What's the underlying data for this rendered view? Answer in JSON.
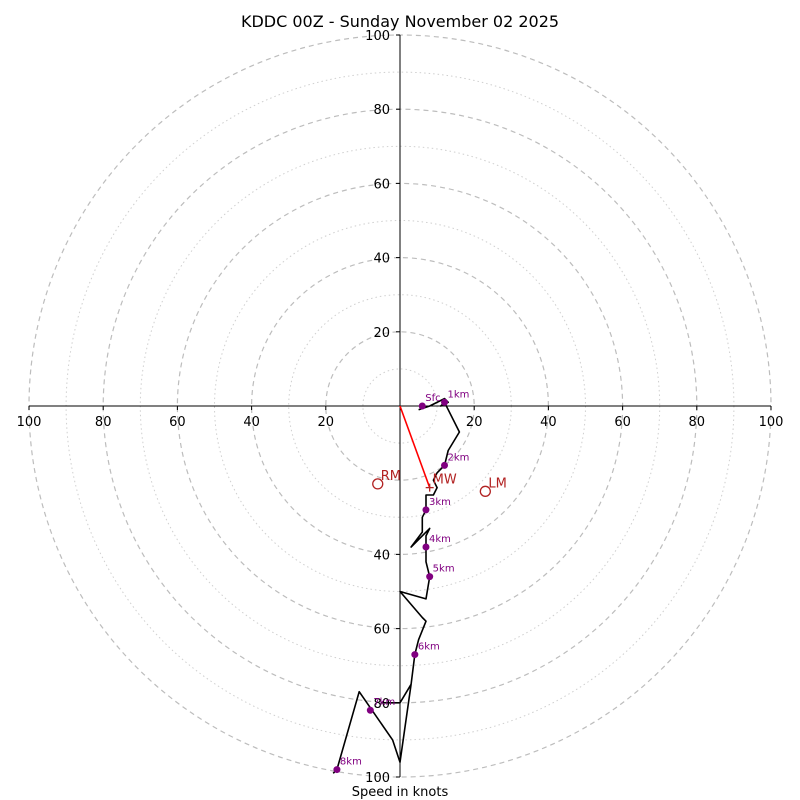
{
  "chart_data": {
    "type": "hodograph",
    "title": "KDDC 00Z - Sunday November 02 2025",
    "xlabel": "Speed in knots",
    "axis_range": [
      -100,
      100
    ],
    "ring_major": [
      20,
      40,
      60,
      80,
      100
    ],
    "ring_minor": [
      10,
      30,
      50,
      70,
      90
    ],
    "x_ticks": [
      {
        "value": -100,
        "label": "100"
      },
      {
        "value": -80,
        "label": "80"
      },
      {
        "value": -60,
        "label": "60"
      },
      {
        "value": -40,
        "label": "40"
      },
      {
        "value": -20,
        "label": "20"
      },
      {
        "value": 20,
        "label": "20"
      },
      {
        "value": 40,
        "label": "40"
      },
      {
        "value": 60,
        "label": "60"
      },
      {
        "value": 80,
        "label": "80"
      },
      {
        "value": 100,
        "label": "100"
      }
    ],
    "y_ticks": [
      {
        "value": 100,
        "label": "100"
      },
      {
        "value": 80,
        "label": "80"
      },
      {
        "value": 60,
        "label": "60"
      },
      {
        "value": 40,
        "label": "40"
      },
      {
        "value": 20,
        "label": "20"
      },
      {
        "value": -40,
        "label": "40"
      },
      {
        "value": -60,
        "label": "60"
      },
      {
        "value": -80,
        "label": "80"
      },
      {
        "value": -100,
        "label": "100"
      }
    ],
    "hodograph_uv": [
      [
        5,
        -1
      ],
      [
        8,
        0
      ],
      [
        12,
        2
      ],
      [
        13,
        1
      ],
      [
        11,
        0
      ],
      [
        12,
        1
      ],
      [
        16,
        -7
      ],
      [
        13,
        -12
      ],
      [
        12,
        -16
      ],
      [
        10,
        -18
      ],
      [
        9,
        -20
      ],
      [
        10,
        -22
      ],
      [
        9,
        -24
      ],
      [
        7,
        -24
      ],
      [
        7,
        -26
      ],
      [
        7,
        -28
      ],
      [
        6,
        -30
      ],
      [
        6,
        -32
      ],
      [
        6,
        -34
      ],
      [
        3,
        -38
      ],
      [
        8,
        -33
      ],
      [
        7,
        -35
      ],
      [
        7,
        -38
      ],
      [
        7,
        -42
      ],
      [
        8,
        -46
      ],
      [
        7,
        -52
      ],
      [
        0,
        -50
      ],
      [
        6,
        -57
      ],
      [
        7,
        -58
      ],
      [
        5,
        -63
      ],
      [
        4,
        -67
      ],
      [
        3,
        -75
      ],
      [
        0,
        -80
      ],
      [
        -5,
        -80
      ],
      [
        0,
        -80
      ],
      [
        3,
        -75
      ],
      [
        0,
        -96
      ],
      [
        -2,
        -90
      ],
      [
        -11,
        -77
      ],
      [
        -17,
        -98
      ],
      [
        -18,
        -99
      ]
    ],
    "height_markers": [
      {
        "label": "Sfc",
        "u": 6,
        "v": 0
      },
      {
        "label": "1km",
        "u": 12,
        "v": 1
      },
      {
        "label": "2km",
        "u": 12,
        "v": -16
      },
      {
        "label": "3km",
        "u": 7,
        "v": -28
      },
      {
        "label": "4km",
        "u": 7,
        "v": -38
      },
      {
        "label": "5km",
        "u": 8,
        "v": -46
      },
      {
        "label": "6km",
        "u": 4,
        "v": -67
      },
      {
        "label": "7km",
        "u": -8,
        "v": -82
      },
      {
        "label": "8km",
        "u": -17,
        "v": -98
      }
    ],
    "storm_motions": [
      {
        "label": "RM",
        "u": -6,
        "v": -21
      },
      {
        "label": "LM",
        "u": 23,
        "v": -23
      },
      {
        "label": "MW",
        "u": 8,
        "v": -22
      }
    ],
    "mean_wind_vector": {
      "label": "MW",
      "u": 8,
      "v": -22
    }
  }
}
